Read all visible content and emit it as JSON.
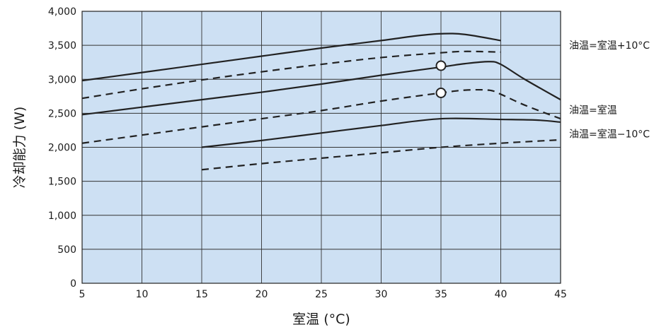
{
  "chart_data": {
    "type": "line",
    "title": "",
    "xlabel": "室温 (°C)",
    "ylabel": "冷却能力 (W)",
    "xlim": [
      5,
      45
    ],
    "ylim": [
      0,
      4000
    ],
    "x_ticks": [
      5,
      10,
      15,
      20,
      25,
      30,
      35,
      40,
      45
    ],
    "y_ticks": [
      0,
      500,
      1000,
      1500,
      2000,
      2500,
      3000,
      3500,
      4000
    ],
    "y_tick_labels": [
      "0",
      "500",
      "1,000",
      "1,500",
      "2,000",
      "2,500",
      "3,000",
      "3,500",
      "4,000"
    ],
    "grid": true,
    "plot_background": "#cde0f3",
    "line_color": "#222222",
    "series": [
      {
        "name": "油温=室温+10°C",
        "style": "solid",
        "x": [
          5,
          10,
          15,
          20,
          25,
          30,
          33,
          35,
          37,
          40
        ],
        "y": [
          2980,
          3100,
          3220,
          3340,
          3460,
          3570,
          3640,
          3670,
          3660,
          3570
        ]
      },
      {
        "name": "油温=室温+10°C",
        "style": "dashed",
        "x": [
          5,
          10,
          15,
          20,
          25,
          30,
          35,
          37,
          40
        ],
        "y": [
          2720,
          2860,
          2990,
          3110,
          3220,
          3320,
          3390,
          3410,
          3400
        ]
      },
      {
        "name": "油温=室温",
        "style": "solid",
        "x": [
          5,
          10,
          15,
          20,
          25,
          30,
          35,
          37,
          39,
          40,
          42,
          45
        ],
        "y": [
          2480,
          2590,
          2700,
          2810,
          2930,
          3060,
          3180,
          3230,
          3260,
          3220,
          3000,
          2700
        ]
      },
      {
        "name": "油温=室温",
        "style": "dashed",
        "x": [
          5,
          10,
          15,
          20,
          25,
          30,
          35,
          37,
          39,
          40,
          42,
          45
        ],
        "y": [
          2060,
          2180,
          2300,
          2420,
          2540,
          2680,
          2800,
          2840,
          2840,
          2780,
          2620,
          2420
        ]
      },
      {
        "name": "油温=室温−10°C",
        "style": "solid",
        "x": [
          15,
          20,
          25,
          30,
          35,
          40,
          43,
          45
        ],
        "y": [
          2000,
          2100,
          2210,
          2320,
          2420,
          2410,
          2400,
          2370
        ]
      },
      {
        "name": "油温=室温−10°C",
        "style": "dashed",
        "x": [
          15,
          20,
          25,
          30,
          35,
          40,
          45
        ],
        "y": [
          1670,
          1760,
          1840,
          1920,
          2000,
          2060,
          2110
        ]
      }
    ],
    "markers": [
      {
        "x": 35,
        "y": 3200,
        "shape": "open-circle"
      },
      {
        "x": 35,
        "y": 2800,
        "shape": "open-circle"
      }
    ],
    "legend": [
      {
        "label": "油温=室温+10°C",
        "y": 3500
      },
      {
        "label": "油温=室温",
        "y": 2550
      },
      {
        "label": "油温=室温−10°C",
        "y": 2200
      }
    ],
    "legend_placement": "right, beside line ends"
  }
}
